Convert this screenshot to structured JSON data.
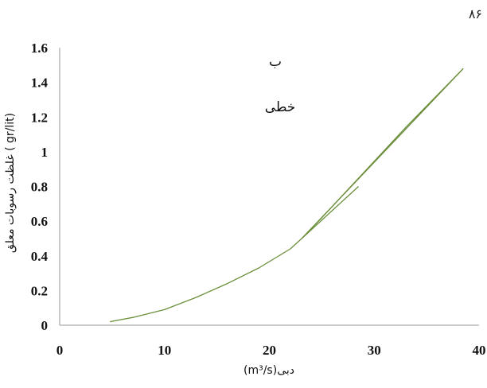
{
  "page_number": "۸۶",
  "chart_data": {
    "type": "line",
    "xlim": [
      0,
      40
    ],
    "ylim": [
      0,
      1.6
    ],
    "x_ticks": [
      0,
      10,
      20,
      30,
      40
    ],
    "y_ticks": [
      0,
      0.2,
      0.4,
      0.6,
      0.8,
      1,
      1.2,
      1.4,
      1.6
    ],
    "x_tick_labels": [
      "0",
      "10",
      "20",
      "30",
      "40"
    ],
    "y_tick_labels": [
      "0",
      "0.2",
      "0.4",
      "0.6",
      "0.8",
      "1",
      "1.2",
      "1.4",
      "1.6"
    ],
    "xlabel": "(m³/s)دبی",
    "ylabel": "غلظت رسوبات معلق ( gr/lit)",
    "annotations": [
      "ب",
      "خطی"
    ],
    "line_color": "#6b8e3a",
    "series": [
      {
        "x": [
          4.8,
          7,
          10,
          13,
          16,
          19,
          22,
          23.1
        ],
        "y": [
          0.02,
          0.045,
          0.09,
          0.16,
          0.24,
          0.33,
          0.44,
          0.5
        ]
      },
      {
        "x": [
          23.1,
          38.5
        ],
        "y": [
          0.5,
          1.48
        ]
      },
      {
        "x": [
          23.1,
          28.5
        ],
        "y": [
          0.5,
          0.8
        ]
      },
      {
        "x": [
          23.1,
          25,
          29,
          33,
          38.5
        ],
        "y": [
          0.5,
          0.62,
          0.88,
          1.14,
          1.48
        ]
      }
    ]
  }
}
